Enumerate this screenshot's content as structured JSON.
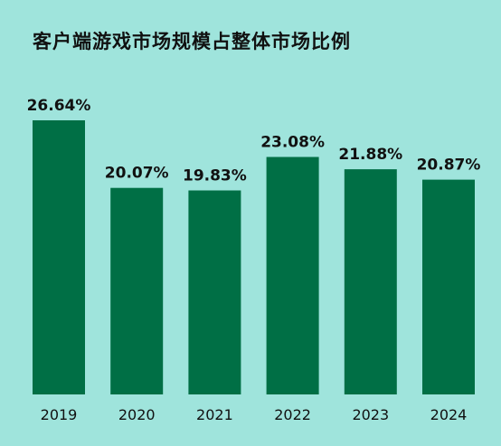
{
  "colors": {
    "background": "#9fe4dc",
    "bar": "#006f45",
    "text": "#111111"
  },
  "chart_data": {
    "type": "bar",
    "title": "客户端游戏市场规模占整体市场比例",
    "categories": [
      "2019",
      "2020",
      "2021",
      "2022",
      "2023",
      "2024"
    ],
    "values": [
      26.64,
      20.07,
      19.83,
      23.08,
      21.88,
      20.87
    ],
    "value_labels": [
      "26.64%",
      "20.07%",
      "19.83%",
      "23.08%",
      "21.88%",
      "20.87%"
    ],
    "unit": "%",
    "xlabel": "",
    "ylabel": "",
    "ylim": [
      0,
      30
    ],
    "grid": false,
    "legend": "none"
  }
}
